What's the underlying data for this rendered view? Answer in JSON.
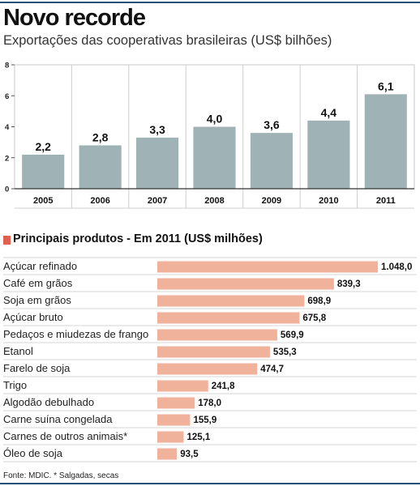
{
  "title": "Novo recorde",
  "subtitle": "Exportações das cooperativas brasileiras (US$ bilhões)",
  "section_title": "Principais produtos - Em 2011 (US$ milhões)",
  "source": "Fonte: MDIC. * Salgadas, secas",
  "colors": {
    "bar_top": "#9fb3b6",
    "bar_bottom": "#f1b29c",
    "marker": "#e0604e",
    "rule": "#1f4e79"
  },
  "chart_data": [
    {
      "type": "bar",
      "categories": [
        "2005",
        "2006",
        "2007",
        "2008",
        "2009",
        "2010",
        "2011"
      ],
      "values": [
        2.2,
        2.8,
        3.3,
        4.0,
        3.6,
        4.4,
        6.1
      ],
      "value_labels": [
        "2,2",
        "2,8",
        "3,3",
        "4,0",
        "3,6",
        "4,4",
        "6,1"
      ],
      "yticks": [
        "0",
        "2",
        "4",
        "6",
        "8"
      ],
      "ylim": [
        0,
        8
      ],
      "grid": "vertical separators",
      "title": "Novo recorde",
      "subtitle": "Exportações das cooperativas brasileiras (US$ bilhões)",
      "xlabel": "",
      "ylabel": ""
    },
    {
      "type": "bar",
      "orientation": "horizontal",
      "title": "Principais produtos - Em 2011 (US$ milhões)",
      "categories": [
        "Açúcar refinado",
        "Café em grãos",
        "Soja em grãos",
        "Açúcar bruto",
        "Pedaços e miudezas de frango",
        "Etanol",
        "Farelo de soja",
        "Trigo",
        "Algodão debulhado",
        "Carne suína congelada",
        "Carnes de outros animais*",
        "Óleo de soja"
      ],
      "values": [
        1048.0,
        839.3,
        698.9,
        675.8,
        569.9,
        535.3,
        474.7,
        241.8,
        178.0,
        155.9,
        125.1,
        93.5
      ],
      "value_labels": [
        "1.048,0",
        "839,3",
        "698,9",
        "675,8",
        "569,9",
        "535,3",
        "474,7",
        "241,8",
        "178,0",
        "155,9",
        "125,1",
        "93,5"
      ],
      "grid": "horizontal rules",
      "xlabel": "",
      "ylabel": ""
    }
  ]
}
